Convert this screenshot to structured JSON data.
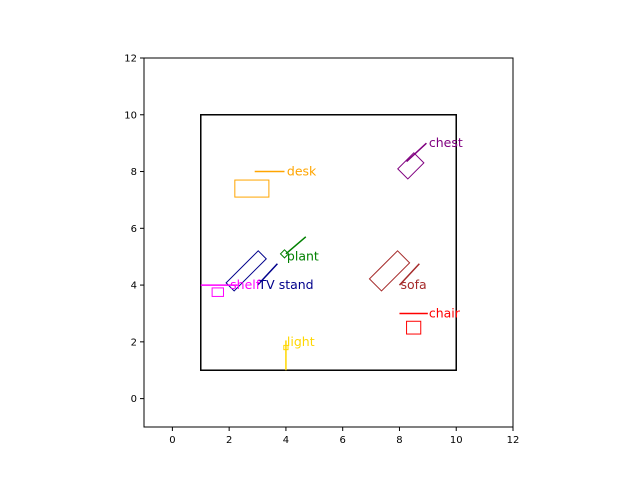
{
  "chart_data": {
    "type": "scatter",
    "title": "",
    "xlabel": "",
    "ylabel": "",
    "xlim": [
      -1,
      12
    ],
    "ylim": [
      -1,
      12
    ],
    "grid": false,
    "legend": "none",
    "xticks": [
      "0",
      "2",
      "4",
      "6",
      "8",
      "10",
      "12"
    ],
    "yticks": [
      "0",
      "2",
      "4",
      "6",
      "8",
      "10",
      "12"
    ],
    "room": {
      "x": 1,
      "y": 1,
      "w": 9,
      "h": 9,
      "color": "#000000"
    },
    "items": [
      {
        "name": "desk",
        "color": "#ffa500",
        "center": [
          2.8,
          7.4
        ],
        "w": 1.2,
        "h": 0.6,
        "angle": 0,
        "facing": [
          [
            2.9,
            8.0
          ],
          [
            3.95,
            8.0
          ]
        ],
        "label": "desk",
        "label_at": [
          4.0,
          8.0
        ]
      },
      {
        "name": "chest",
        "color": "#800080",
        "center": [
          8.4,
          8.2
        ],
        "w": 0.8,
        "h": 0.5,
        "angle": 45,
        "facing": [
          [
            8.25,
            8.35
          ],
          [
            8.95,
            9.0
          ]
        ],
        "label": "chest",
        "label_at": [
          9.0,
          9.0
        ]
      },
      {
        "name": "plant",
        "color": "#008000",
        "center": [
          3.95,
          5.1
        ],
        "w": 0.2,
        "h": 0.2,
        "angle": 45,
        "facing": [
          [
            4.0,
            5.1
          ],
          [
            4.7,
            5.7
          ]
        ],
        "label": "plant",
        "label_at": [
          4.0,
          5.0
        ]
      },
      {
        "name": "TV stand",
        "color": "#00008b",
        "center": [
          2.6,
          4.5
        ],
        "w": 1.6,
        "h": 0.4,
        "angle": 45,
        "facing": [
          [
            3.0,
            4.0
          ],
          [
            3.7,
            4.75
          ]
        ],
        "label": "TV stand",
        "label_at": [
          3.0,
          4.0
        ]
      },
      {
        "name": "shelf",
        "color": "#ff00ff",
        "center": [
          1.6,
          3.75
        ],
        "w": 0.4,
        "h": 0.3,
        "angle": 0,
        "facing": [
          [
            1.0,
            4.0
          ],
          [
            2.3,
            4.0
          ]
        ],
        "label": "shelf",
        "label_at": [
          2.0,
          4.0
        ]
      },
      {
        "name": "sofa",
        "color": "#a52a2a",
        "center": [
          7.65,
          4.5
        ],
        "w": 1.4,
        "h": 0.6,
        "angle": 45,
        "facing": [
          [
            8.0,
            4.0
          ],
          [
            8.7,
            4.75
          ]
        ],
        "label": "sofa",
        "label_at": [
          8.0,
          4.0
        ]
      },
      {
        "name": "chair",
        "color": "#ff0000",
        "center": [
          8.5,
          2.5
        ],
        "w": 0.5,
        "h": 0.45,
        "angle": 0,
        "facing": [
          [
            8.0,
            3.0
          ],
          [
            9.0,
            3.0
          ]
        ],
        "label": "chair",
        "label_at": [
          9.0,
          3.0
        ]
      },
      {
        "name": "light",
        "color": "#ffd700",
        "center": [
          4.0,
          1.8
        ],
        "w": 0.15,
        "h": 0.15,
        "angle": 0,
        "facing": [
          [
            4.0,
            1.0
          ],
          [
            4.0,
            2.05
          ]
        ],
        "label": "light",
        "label_at": [
          4.0,
          2.0
        ]
      }
    ]
  }
}
